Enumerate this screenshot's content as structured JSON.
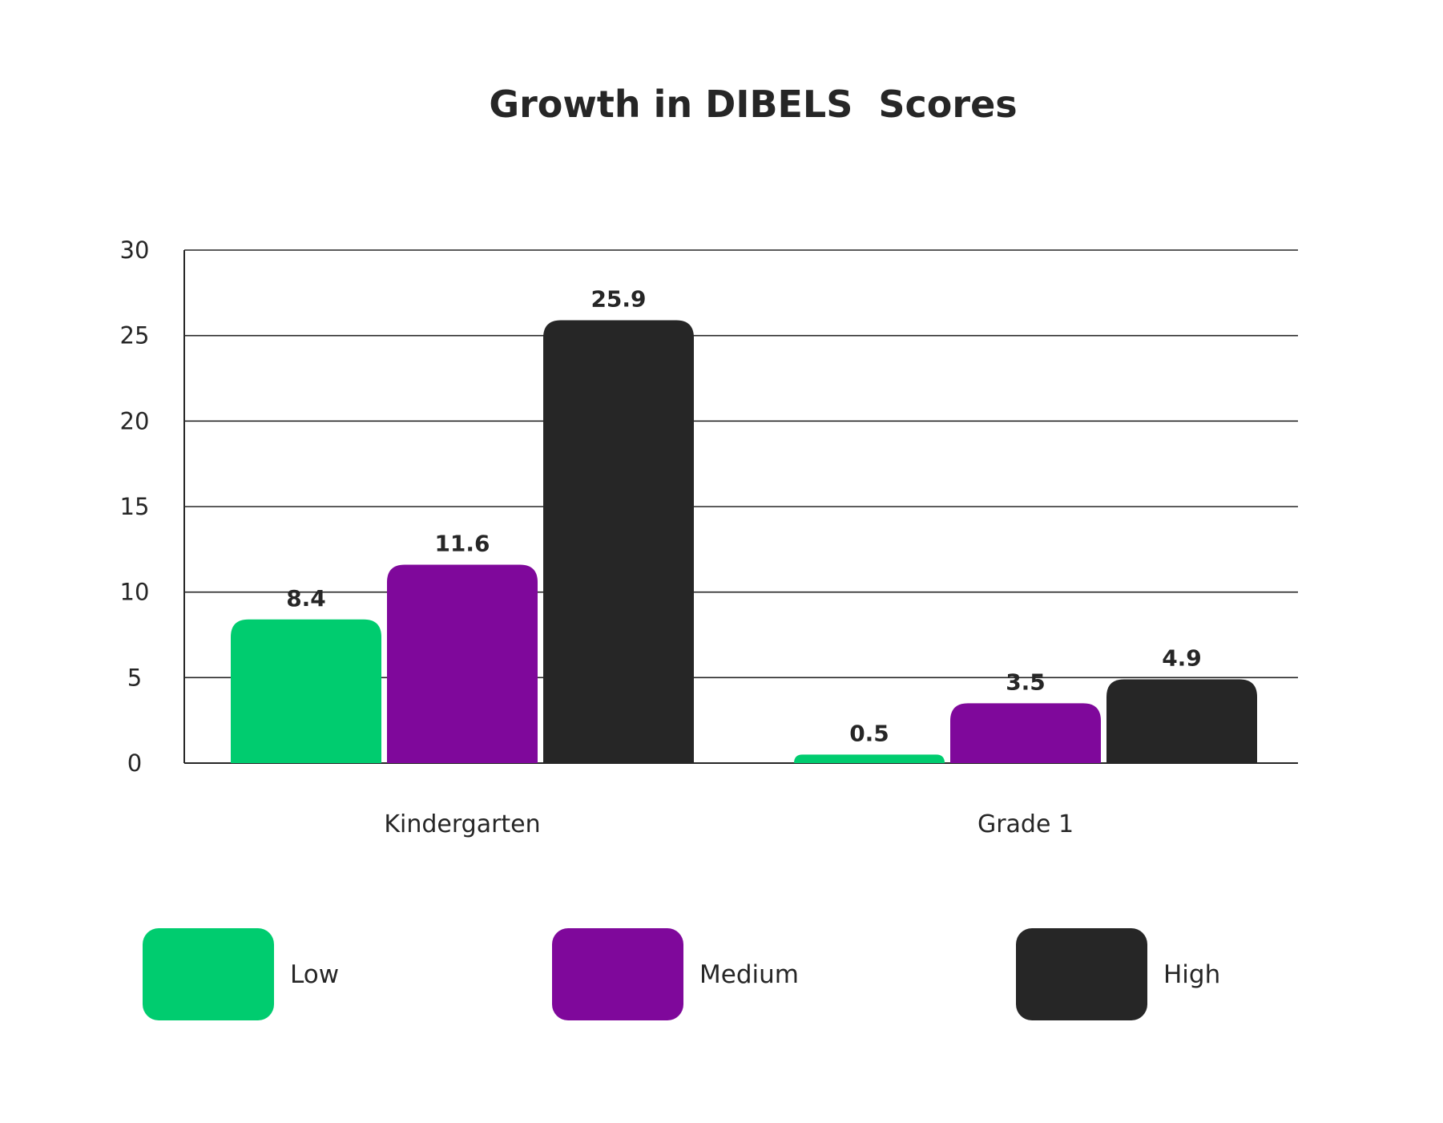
{
  "chart_data": {
    "type": "bar",
    "title": "Growth in DIBELS  Scores",
    "xlabel": "",
    "ylabel": "",
    "categories": [
      "Kindergarten",
      "Grade 1"
    ],
    "series": [
      {
        "name": "Low",
        "color": "#00CC6F",
        "values": [
          8.4,
          0.5
        ]
      },
      {
        "name": "Medium",
        "color": "#7F089B",
        "values": [
          11.6,
          3.5
        ]
      },
      {
        "name": "High",
        "color": "#262626",
        "values": [
          25.9,
          4.9
        ]
      }
    ],
    "ylim": [
      0,
      30
    ],
    "yticks": [
      0,
      5,
      10,
      15,
      20,
      25,
      30
    ],
    "grid": true,
    "legend_position": "bottom"
  }
}
